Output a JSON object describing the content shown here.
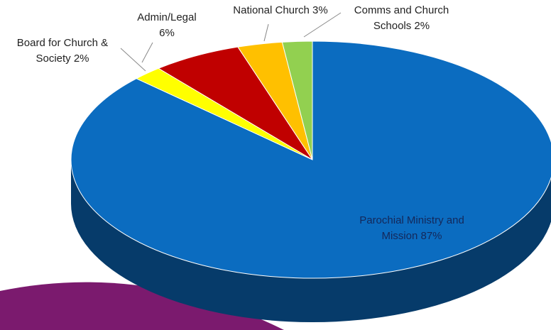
{
  "chart_data": {
    "type": "pie",
    "categories": [
      "Parochial Ministry and Mission",
      "Board for Church & Society",
      "Admin/Legal",
      "National Church",
      "Comms and Church Schools"
    ],
    "values": [
      87,
      2,
      6,
      3,
      2
    ],
    "value_labels": [
      "87%",
      "2%",
      "6%",
      "3%",
      "2%"
    ],
    "colors": [
      "#0b6cc0",
      "#ffff00",
      "#c00000",
      "#ffc000",
      "#92d050"
    ]
  }
}
